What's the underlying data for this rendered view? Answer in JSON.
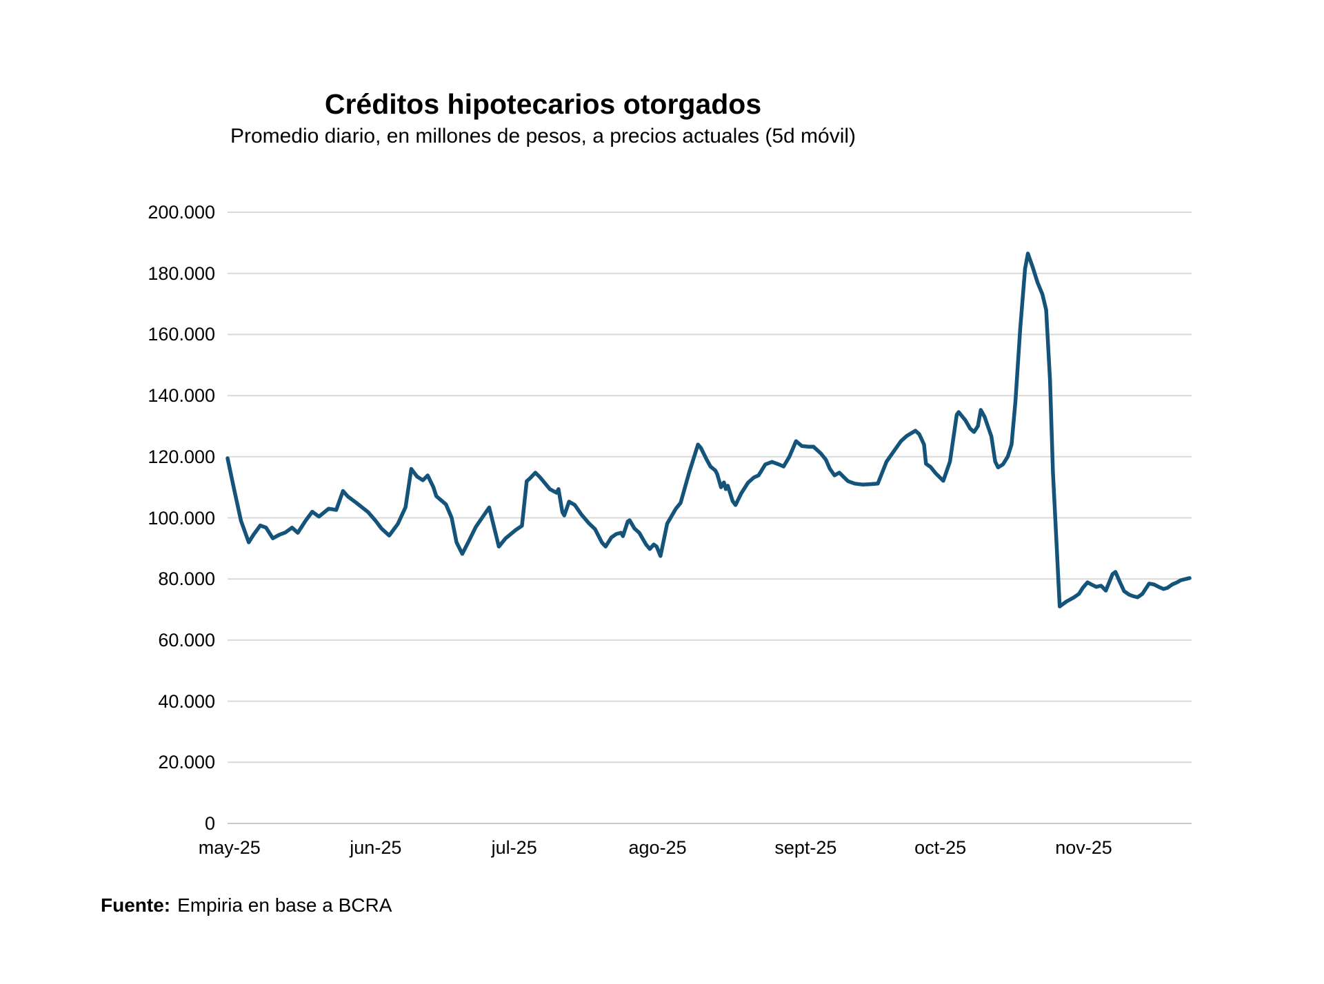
{
  "title": "Créditos hipotecarios otorgados",
  "subtitle": "Promedio diario, en millones de pesos, a precios actuales (5d móvil)",
  "source": {
    "label": "Fuente:",
    "text": "Empiria en base a BCRA"
  },
  "colors": {
    "line": "#14537a",
    "gridline": "#d9d9d9",
    "axis": "#c9c9c9",
    "text": "#000000"
  },
  "chart_data": {
    "type": "line",
    "title": "Créditos hipotecarios otorgados",
    "subtitle": "Promedio diario, en millones de pesos, a precios actuales (5d móvil)",
    "ylim": [
      0,
      200000
    ],
    "grid": "horizontal",
    "legend": "none",
    "y_ticks": [
      {
        "label": "200.000",
        "value": 200000
      },
      {
        "label": "180.000",
        "value": 180000
      },
      {
        "label": "160.000",
        "value": 160000
      },
      {
        "label": "140.000",
        "value": 140000
      },
      {
        "label": "120.000",
        "value": 120000
      },
      {
        "label": "100.000",
        "value": 100000
      },
      {
        "label": "80.000",
        "value": 80000
      },
      {
        "label": "60.000",
        "value": 60000
      },
      {
        "label": "40.000",
        "value": 40000
      },
      {
        "label": "20.000",
        "value": 20000
      },
      {
        "label": "0",
        "value": 0
      }
    ],
    "x_ticks": [
      {
        "label": "may-25",
        "f": 0.002
      },
      {
        "label": "jun-25",
        "f": 0.154
      },
      {
        "label": "jul-25",
        "f": 0.298
      },
      {
        "label": "ago-25",
        "f": 0.447
      },
      {
        "label": "sept-25",
        "f": 0.601
      },
      {
        "label": "oct-25",
        "f": 0.741
      },
      {
        "label": "nov-25",
        "f": 0.89
      }
    ],
    "series": [
      {
        "name": "Créditos hipotecarios otorgados (promedio diario 5d móvil)",
        "points": [
          [
            0.0,
            119500
          ],
          [
            0.007,
            109000
          ],
          [
            0.014,
            99000
          ],
          [
            0.022,
            92000
          ],
          [
            0.027,
            94500
          ],
          [
            0.034,
            97500
          ],
          [
            0.04,
            96800
          ],
          [
            0.047,
            93300
          ],
          [
            0.054,
            94500
          ],
          [
            0.06,
            95200
          ],
          [
            0.067,
            96800
          ],
          [
            0.073,
            95100
          ],
          [
            0.081,
            99000
          ],
          [
            0.088,
            102000
          ],
          [
            0.095,
            100400
          ],
          [
            0.105,
            103000
          ],
          [
            0.113,
            102600
          ],
          [
            0.12,
            108800
          ],
          [
            0.125,
            107000
          ],
          [
            0.134,
            104900
          ],
          [
            0.146,
            101900
          ],
          [
            0.154,
            99000
          ],
          [
            0.16,
            96500
          ],
          [
            0.168,
            94200
          ],
          [
            0.177,
            98000
          ],
          [
            0.185,
            103500
          ],
          [
            0.191,
            116000
          ],
          [
            0.197,
            113500
          ],
          [
            0.203,
            112300
          ],
          [
            0.208,
            113900
          ],
          [
            0.214,
            110000
          ],
          [
            0.217,
            107100
          ],
          [
            0.227,
            104400
          ],
          [
            0.233,
            100000
          ],
          [
            0.238,
            92000
          ],
          [
            0.244,
            88200
          ],
          [
            0.251,
            92500
          ],
          [
            0.258,
            97000
          ],
          [
            0.265,
            100200
          ],
          [
            0.272,
            103400
          ],
          [
            0.277,
            97000
          ],
          [
            0.282,
            90600
          ],
          [
            0.289,
            93300
          ],
          [
            0.299,
            95900
          ],
          [
            0.306,
            97400
          ],
          [
            0.311,
            112000
          ],
          [
            0.314,
            112800
          ],
          [
            0.32,
            114800
          ],
          [
            0.325,
            113200
          ],
          [
            0.335,
            109400
          ],
          [
            0.342,
            108200
          ],
          [
            0.344,
            109400
          ],
          [
            0.348,
            101900
          ],
          [
            0.35,
            100800
          ],
          [
            0.355,
            105300
          ],
          [
            0.361,
            104200
          ],
          [
            0.368,
            101000
          ],
          [
            0.376,
            98100
          ],
          [
            0.382,
            96300
          ],
          [
            0.389,
            92000
          ],
          [
            0.393,
            90600
          ],
          [
            0.399,
            93600
          ],
          [
            0.404,
            94700
          ],
          [
            0.409,
            95100
          ],
          [
            0.411,
            94000
          ],
          [
            0.416,
            98800
          ],
          [
            0.418,
            99200
          ],
          [
            0.423,
            96500
          ],
          [
            0.428,
            95100
          ],
          [
            0.435,
            91300
          ],
          [
            0.439,
            89800
          ],
          [
            0.443,
            91300
          ],
          [
            0.446,
            90600
          ],
          [
            0.45,
            87500
          ],
          [
            0.453,
            92000
          ],
          [
            0.457,
            98100
          ],
          [
            0.461,
            100300
          ],
          [
            0.466,
            103000
          ],
          [
            0.471,
            104900
          ],
          [
            0.475,
            109400
          ],
          [
            0.48,
            115000
          ],
          [
            0.489,
            124000
          ],
          [
            0.492,
            122900
          ],
          [
            0.498,
            119100
          ],
          [
            0.502,
            116800
          ],
          [
            0.507,
            115500
          ],
          [
            0.509,
            114300
          ],
          [
            0.513,
            110000
          ],
          [
            0.516,
            111600
          ],
          [
            0.518,
            109400
          ],
          [
            0.52,
            110500
          ],
          [
            0.525,
            105500
          ],
          [
            0.528,
            104200
          ],
          [
            0.534,
            108000
          ],
          [
            0.541,
            111500
          ],
          [
            0.547,
            113200
          ],
          [
            0.552,
            113900
          ],
          [
            0.559,
            117500
          ],
          [
            0.566,
            118300
          ],
          [
            0.573,
            117500
          ],
          [
            0.578,
            116800
          ],
          [
            0.584,
            120000
          ],
          [
            0.591,
            125100
          ],
          [
            0.597,
            123500
          ],
          [
            0.604,
            123300
          ],
          [
            0.609,
            123300
          ],
          [
            0.617,
            121000
          ],
          [
            0.622,
            119000
          ],
          [
            0.626,
            116100
          ],
          [
            0.631,
            113900
          ],
          [
            0.636,
            114800
          ],
          [
            0.64,
            113500
          ],
          [
            0.645,
            112000
          ],
          [
            0.652,
            111200
          ],
          [
            0.66,
            110900
          ],
          [
            0.667,
            111000
          ],
          [
            0.676,
            111200
          ],
          [
            0.685,
            118400
          ],
          [
            0.69,
            120600
          ],
          [
            0.7,
            125100
          ],
          [
            0.706,
            126800
          ],
          [
            0.715,
            128500
          ],
          [
            0.719,
            127400
          ],
          [
            0.724,
            124000
          ],
          [
            0.726,
            117700
          ],
          [
            0.731,
            116600
          ],
          [
            0.736,
            114600
          ],
          [
            0.744,
            112100
          ],
          [
            0.751,
            118400
          ],
          [
            0.758,
            133700
          ],
          [
            0.76,
            134600
          ],
          [
            0.767,
            131900
          ],
          [
            0.772,
            129200
          ],
          [
            0.776,
            128100
          ],
          [
            0.78,
            130000
          ],
          [
            0.783,
            135300
          ],
          [
            0.787,
            133000
          ],
          [
            0.794,
            126700
          ],
          [
            0.798,
            118400
          ],
          [
            0.801,
            116500
          ],
          [
            0.806,
            117500
          ],
          [
            0.811,
            120000
          ],
          [
            0.815,
            124000
          ],
          [
            0.819,
            138000
          ],
          [
            0.824,
            162000
          ],
          [
            0.829,
            181500
          ],
          [
            0.832,
            186500
          ],
          [
            0.837,
            182000
          ],
          [
            0.842,
            177000
          ],
          [
            0.847,
            173200
          ],
          [
            0.851,
            168000
          ],
          [
            0.855,
            145000
          ],
          [
            0.858,
            115000
          ],
          [
            0.862,
            90000
          ],
          [
            0.865,
            71000
          ],
          [
            0.872,
            72600
          ],
          [
            0.88,
            74000
          ],
          [
            0.885,
            75100
          ],
          [
            0.889,
            77100
          ],
          [
            0.894,
            78900
          ],
          [
            0.898,
            78200
          ],
          [
            0.903,
            77400
          ],
          [
            0.908,
            77800
          ],
          [
            0.913,
            76200
          ],
          [
            0.92,
            81600
          ],
          [
            0.923,
            82300
          ],
          [
            0.927,
            79400
          ],
          [
            0.932,
            76000
          ],
          [
            0.937,
            74900
          ],
          [
            0.941,
            74400
          ],
          [
            0.946,
            74000
          ],
          [
            0.951,
            75100
          ],
          [
            0.958,
            78500
          ],
          [
            0.963,
            78200
          ],
          [
            0.968,
            77400
          ],
          [
            0.973,
            76700
          ],
          [
            0.977,
            77100
          ],
          [
            0.982,
            78200
          ],
          [
            0.987,
            78900
          ],
          [
            0.991,
            79600
          ],
          [
            1.0,
            80300
          ]
        ]
      }
    ]
  }
}
